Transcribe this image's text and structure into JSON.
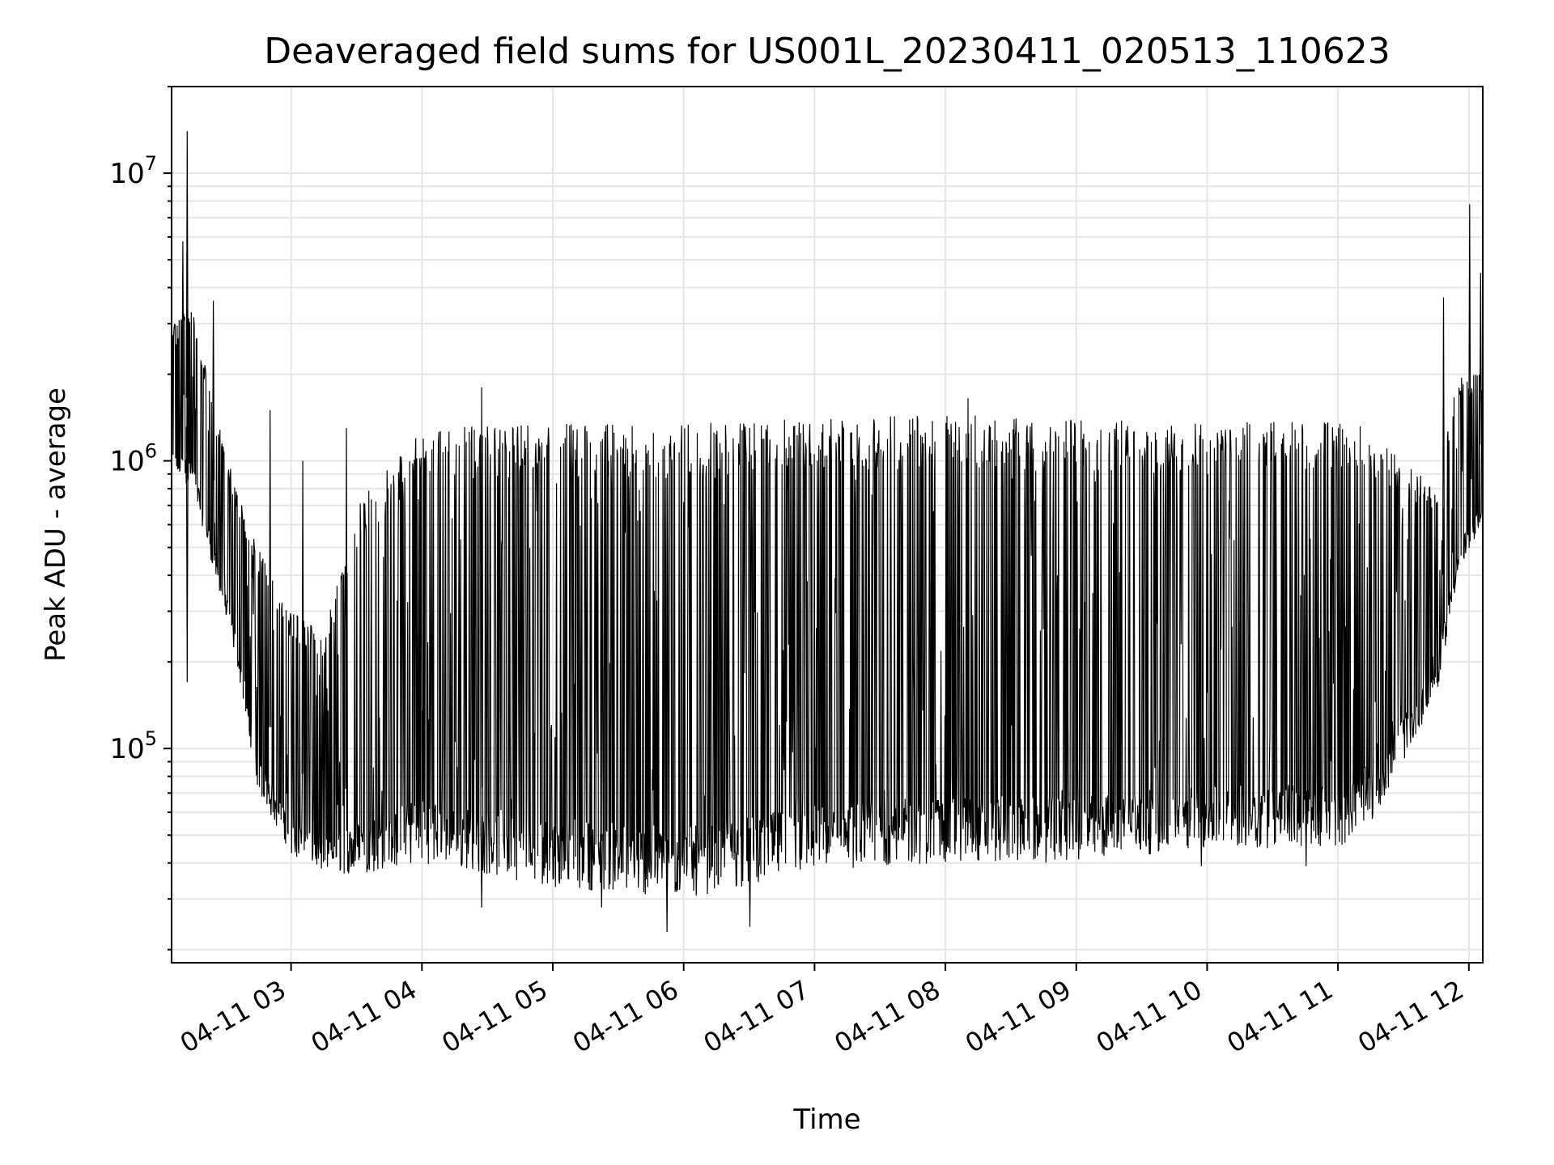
{
  "chart_data": {
    "type": "line",
    "title": "Deaveraged field sums for US001L_20230411_020513_110623",
    "xlabel": "Time",
    "ylabel": "Peak ADU - average",
    "y_scale": "log",
    "ylim": [
      18000,
      20000000
    ],
    "xlim": [
      "2023-04-11 02:05:13",
      "2023-04-11 12:06:23"
    ],
    "grid": true,
    "line_color": "#000000",
    "grid_color": "#e6e6e6",
    "x_ticks": [
      {
        "time": "2023-04-11 03:00",
        "label": "04-11 03"
      },
      {
        "time": "2023-04-11 04:00",
        "label": "04-11 04"
      },
      {
        "time": "2023-04-11 05:00",
        "label": "04-11 05"
      },
      {
        "time": "2023-04-11 06:00",
        "label": "04-11 06"
      },
      {
        "time": "2023-04-11 07:00",
        "label": "04-11 07"
      },
      {
        "time": "2023-04-11 08:00",
        "label": "04-11 08"
      },
      {
        "time": "2023-04-11 09:00",
        "label": "04-11 09"
      },
      {
        "time": "2023-04-11 10:00",
        "label": "04-11 10"
      },
      {
        "time": "2023-04-11 11:00",
        "label": "04-11 11"
      },
      {
        "time": "2023-04-11 12:00",
        "label": "04-11 12"
      }
    ],
    "y_ticks": [
      {
        "value": 100000,
        "base": "10",
        "exp": "5"
      },
      {
        "value": 1000000,
        "base": "10",
        "exp": "6"
      },
      {
        "value": 10000000,
        "base": "10",
        "exp": "7"
      }
    ],
    "series": [
      {
        "envelope_low": [
          [
            "2023-04-11 02:05:13",
            900000
          ],
          [
            "2023-04-11 02:15",
            800000
          ],
          [
            "2023-04-11 02:25",
            400000
          ],
          [
            "2023-04-11 02:35",
            200000
          ],
          [
            "2023-04-11 02:45",
            70000
          ],
          [
            "2023-04-11 03:00",
            43000
          ],
          [
            "2023-04-11 03:15",
            37000
          ],
          [
            "2023-04-11 03:30",
            36000
          ],
          [
            "2023-04-11 04:00",
            40000
          ],
          [
            "2023-04-11 05:00",
            33000
          ],
          [
            "2023-04-11 06:00",
            30000
          ],
          [
            "2023-04-11 07:00",
            37000
          ],
          [
            "2023-04-11 08:00",
            40000
          ],
          [
            "2023-04-11 09:00",
            40000
          ],
          [
            "2023-04-11 10:00",
            45000
          ],
          [
            "2023-04-11 11:00",
            45000
          ],
          [
            "2023-04-11 11:15",
            55000
          ],
          [
            "2023-04-11 11:30",
            90000
          ],
          [
            "2023-04-11 11:45",
            150000
          ],
          [
            "2023-04-11 11:55",
            400000
          ],
          [
            "2023-04-11 12:06:23",
            600000
          ]
        ],
        "envelope_high": [
          [
            "2023-04-11 02:05:13",
            3000000
          ],
          [
            "2023-04-11 02:15",
            3500000
          ],
          [
            "2023-04-11 02:25",
            1500000
          ],
          [
            "2023-04-11 02:35",
            800000
          ],
          [
            "2023-04-11 02:45",
            500000
          ],
          [
            "2023-04-11 03:00",
            300000
          ],
          [
            "2023-04-11 03:15",
            250000
          ],
          [
            "2023-04-11 03:30",
            700000
          ],
          [
            "2023-04-11 04:00",
            1300000
          ],
          [
            "2023-04-11 05:00",
            1350000
          ],
          [
            "2023-04-11 06:00",
            1350000
          ],
          [
            "2023-04-11 07:00",
            1400000
          ],
          [
            "2023-04-11 08:00",
            1450000
          ],
          [
            "2023-04-11 09:00",
            1400000
          ],
          [
            "2023-04-11 10:00",
            1350000
          ],
          [
            "2023-04-11 11:00",
            1400000
          ],
          [
            "2023-04-11 11:15",
            1300000
          ],
          [
            "2023-04-11 11:30",
            1000000
          ],
          [
            "2023-04-11 11:45",
            800000
          ],
          [
            "2023-04-11 11:55",
            2000000
          ],
          [
            "2023-04-11 12:06:23",
            2000000
          ]
        ],
        "spikes": [
          [
            "2023-04-11 02:12",
            14000000
          ],
          [
            "2023-04-11 02:10",
            5800000
          ],
          [
            "2023-04-11 02:24",
            3600000
          ],
          [
            "2023-04-11 02:50",
            1500000
          ],
          [
            "2023-04-11 03:05",
            1000000
          ],
          [
            "2023-04-11 03:25",
            1300000
          ],
          [
            "2023-04-11 04:27",
            1800000
          ],
          [
            "2023-04-11 08:10",
            1650000
          ],
          [
            "2023-04-11 11:48",
            3700000
          ],
          [
            "2023-04-11 12:00",
            7800000
          ],
          [
            "2023-04-11 12:05",
            4500000
          ]
        ],
        "dips": [
          [
            "2023-04-11 02:12",
            170000
          ],
          [
            "2023-04-11 04:27",
            28000
          ],
          [
            "2023-04-11 05:22",
            28000
          ],
          [
            "2023-04-11 05:52",
            23000
          ],
          [
            "2023-04-11 06:30",
            24000
          ],
          [
            "2023-04-11 09:57",
            39000
          ],
          [
            "2023-04-11 10:45",
            39000
          ]
        ]
      }
    ]
  }
}
